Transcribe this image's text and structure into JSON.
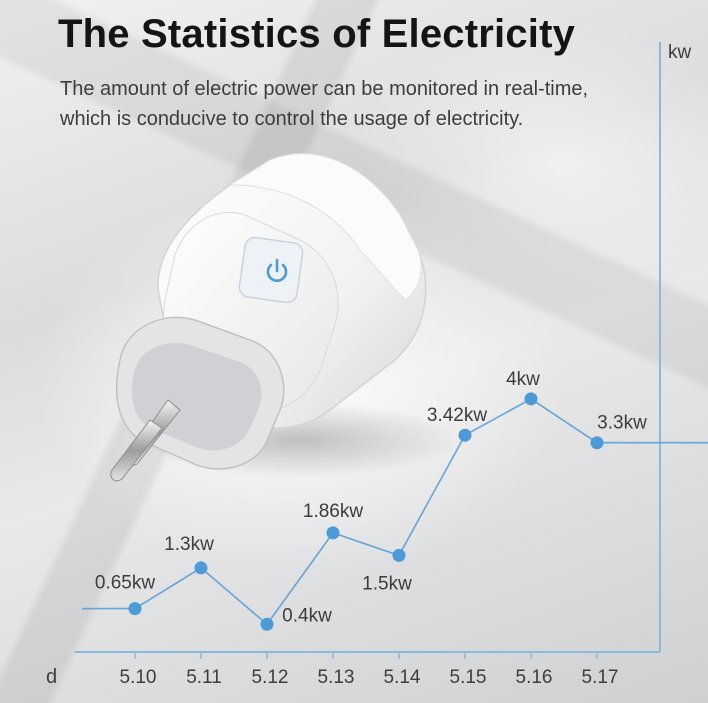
{
  "header": {
    "title": "The Statistics of Electricity",
    "subtitle_line1": "The amount of electric power can be monitored in real-time,",
    "subtitle_line2": "which is conducive to control the usage of electricity."
  },
  "colors": {
    "accent": "#4d9ad8",
    "axis": "#8ab9de",
    "title": "#141414",
    "text": "#3d3d3d"
  },
  "icons": [
    "power-icon"
  ],
  "chart_data": {
    "type": "line",
    "xlabel": "d",
    "ylabel": "kw",
    "categories": [
      "5.10",
      "5.11",
      "5.12",
      "5.13",
      "5.14",
      "5.15",
      "5.16",
      "5.17"
    ],
    "series": [
      {
        "values": [
          0.65,
          1.3,
          0.4,
          1.86,
          1.5,
          3.42,
          4,
          3.3
        ],
        "labels": [
          "0.65kw",
          "1.3kw",
          "0.4kw",
          "1.86kw",
          "1.5kw",
          "3.42kw",
          "4kw",
          "3.3kw"
        ]
      }
    ],
    "grid": false,
    "legend": "none"
  }
}
